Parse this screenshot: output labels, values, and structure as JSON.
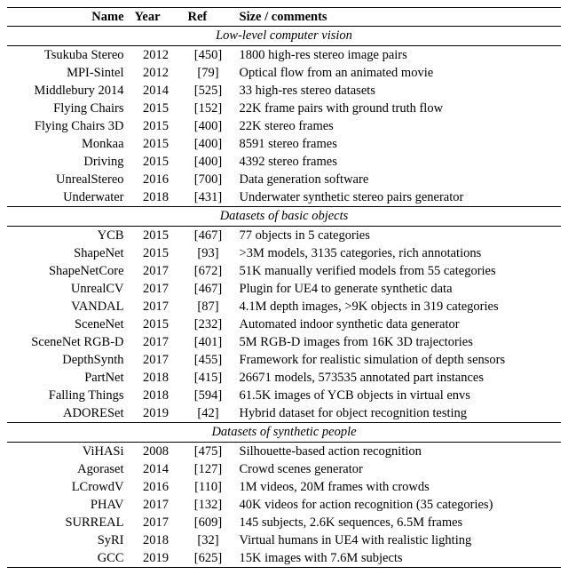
{
  "header": {
    "name": "Name",
    "year": "Year",
    "ref": "Ref",
    "comm": "Size / comments"
  },
  "sections": [
    {
      "title": "Low-level computer vision",
      "rows": [
        {
          "name": "Tsukuba Stereo",
          "year": "2012",
          "ref": "[450]",
          "comm": "1800 high-res stereo image pairs"
        },
        {
          "name": "MPI-Sintel",
          "year": "2012",
          "ref": "[79]",
          "comm": "Optical flow from an animated movie"
        },
        {
          "name": "Middlebury 2014",
          "year": "2014",
          "ref": "[525]",
          "comm": "33 high-res stereo datasets"
        },
        {
          "name": "Flying Chairs",
          "year": "2015",
          "ref": "[152]",
          "comm": "22K frame pairs with ground truth flow"
        },
        {
          "name": "Flying Chairs 3D",
          "year": "2015",
          "ref": "[400]",
          "comm": "22K stereo frames"
        },
        {
          "name": "Monkaa",
          "year": "2015",
          "ref": "[400]",
          "comm": "8591 stereo frames"
        },
        {
          "name": "Driving",
          "year": "2015",
          "ref": "[400]",
          "comm": "4392 stereo frames"
        },
        {
          "name": "UnrealStereo",
          "year": "2016",
          "ref": "[700]",
          "comm": "Data generation software"
        },
        {
          "name": "Underwater",
          "year": "2018",
          "ref": "[431]",
          "comm": "Underwater synthetic stereo pairs generator"
        }
      ]
    },
    {
      "title": "Datasets of basic objects",
      "rows": [
        {
          "name": "YCB",
          "year": "2015",
          "ref": "[467]",
          "comm": "77 objects in 5 categories"
        },
        {
          "name": "ShapeNet",
          "year": "2015",
          "ref": "[93]",
          "comm": ">3M models, 3135 categories, rich annotations"
        },
        {
          "name": "ShapeNetCore",
          "year": "2017",
          "ref": "[672]",
          "comm": "51K manually verified models from 55 categories"
        },
        {
          "name": "UnrealCV",
          "year": "2017",
          "ref": "[467]",
          "comm": "Plugin for UE4 to generate synthetic data"
        },
        {
          "name": "VANDAL",
          "year": "2017",
          "ref": "[87]",
          "comm": "4.1M depth images, >9K objects in 319 categories"
        },
        {
          "name": "SceneNet",
          "year": "2015",
          "ref": "[232]",
          "comm": "Automated indoor synthetic data generator"
        },
        {
          "name": "SceneNet RGB-D",
          "year": "2017",
          "ref": "[401]",
          "comm": "5M RGB-D images from 16K 3D trajectories"
        },
        {
          "name": "DepthSynth",
          "year": "2017",
          "ref": "[455]",
          "comm": "Framework for realistic simulation of depth sensors"
        },
        {
          "name": "PartNet",
          "year": "2018",
          "ref": "[415]",
          "comm": "26671 models, 573535 annotated part instances"
        },
        {
          "name": "Falling Things",
          "year": "2018",
          "ref": "[594]",
          "comm": "61.5K images of YCB objects in virtual envs"
        },
        {
          "name": "ADORESet",
          "year": "2019",
          "ref": "[42]",
          "comm": "Hybrid dataset for object recognition testing"
        }
      ]
    },
    {
      "title": "Datasets of synthetic people",
      "rows": [
        {
          "name": "ViHASi",
          "year": "2008",
          "ref": "[475]",
          "comm": "Silhouette-based action recognition"
        },
        {
          "name": "Agoraset",
          "year": "2014",
          "ref": "[127]",
          "comm": "Crowd scenes generator"
        },
        {
          "name": "LCrowdV",
          "year": "2016",
          "ref": "[110]",
          "comm": "1M videos, 20M frames with crowds"
        },
        {
          "name": "PHAV",
          "year": "2017",
          "ref": "[132]",
          "comm": "40K videos for action recognition (35 categories)"
        },
        {
          "name": "SURREAL",
          "year": "2017",
          "ref": "[609]",
          "comm": "145 subjects, 2.6K sequences, 6.5M frames"
        },
        {
          "name": "SyRI",
          "year": "2018",
          "ref": "[32]",
          "comm": "Virtual humans in UE4 with realistic lighting"
        },
        {
          "name": "GCC",
          "year": "2019",
          "ref": "[625]",
          "comm": "15K images with 7.6M subjects"
        }
      ]
    }
  ]
}
